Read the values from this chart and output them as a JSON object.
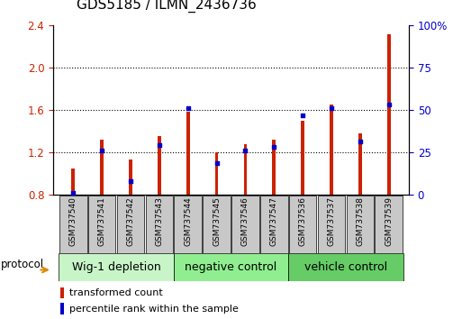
{
  "title": "GDS5185 / ILMN_2436736",
  "samples": [
    "GSM737540",
    "GSM737541",
    "GSM737542",
    "GSM737543",
    "GSM737544",
    "GSM737545",
    "GSM737546",
    "GSM737547",
    "GSM737536",
    "GSM737537",
    "GSM737538",
    "GSM737539"
  ],
  "red_values": [
    1.05,
    1.32,
    1.13,
    1.35,
    1.58,
    1.2,
    1.28,
    1.32,
    1.5,
    1.65,
    1.38,
    2.32
  ],
  "blue_values": [
    0.82,
    1.22,
    0.93,
    1.27,
    1.62,
    1.1,
    1.22,
    1.25,
    1.55,
    1.62,
    1.3,
    1.65
  ],
  "ylim_left": [
    0.8,
    2.4
  ],
  "ylim_right": [
    0,
    100
  ],
  "yticks_left": [
    0.8,
    1.2,
    1.6,
    2.0,
    2.4
  ],
  "yticks_right": [
    0,
    25,
    50,
    75,
    100
  ],
  "ytick_labels_right": [
    "0",
    "25",
    "50",
    "75",
    "100%"
  ],
  "groups": [
    {
      "label": "Wig-1 depletion",
      "start": 0,
      "end": 4
    },
    {
      "label": "negative control",
      "start": 4,
      "end": 8
    },
    {
      "label": "vehicle control",
      "start": 8,
      "end": 12
    }
  ],
  "group_colors": [
    "#c8f5c8",
    "#90ee90",
    "#66cc66"
  ],
  "bar_color": "#cc2200",
  "blue_color": "#0000cc",
  "bar_width": 0.12,
  "bar_bottom": 0.8,
  "protocol_arrow_color": "#dd8800",
  "background_plot": "#ffffff",
  "tick_label_color_left": "#cc2200",
  "tick_label_color_right": "#0000cc",
  "xlabel_gray_bg": "#c8c8c8",
  "title_fontsize": 11,
  "legend_fontsize": 8,
  "group_fontsize": 9,
  "protocol_fontsize": 8.5
}
